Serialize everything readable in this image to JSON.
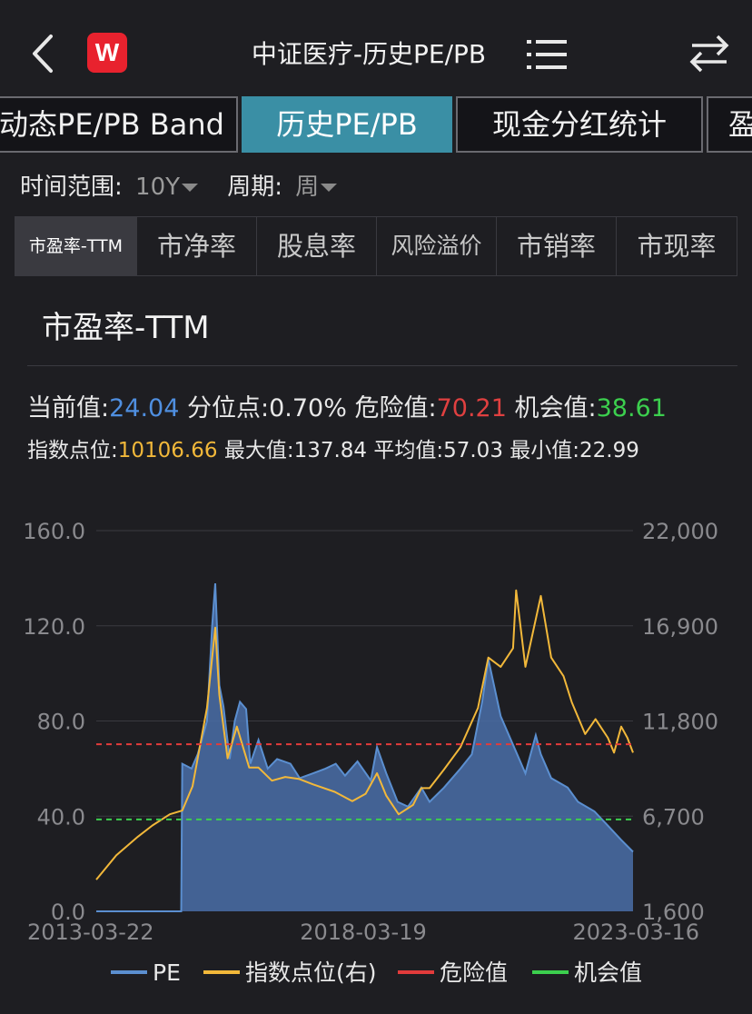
{
  "header": {
    "logo_text": "W",
    "title": "中证医疗-历史PE/PB"
  },
  "tabs": [
    {
      "label": "动态PE/PB Band"
    },
    {
      "label": "历史PE/PB"
    },
    {
      "label": "现金分红统计"
    },
    {
      "label": "盈"
    }
  ],
  "filters": {
    "range_label": "时间范围:",
    "range_value": "10Y",
    "period_label": "周期:",
    "period_value": "周"
  },
  "subtabs": [
    {
      "label": "市盈率-TTM"
    },
    {
      "label": "市净率"
    },
    {
      "label": "股息率"
    },
    {
      "label": "风险溢价"
    },
    {
      "label": "市销率"
    },
    {
      "label": "市现率"
    }
  ],
  "section_title": "市盈率-TTM",
  "stats": {
    "current_label": "当前值:",
    "current_value": "24.04",
    "percentile_label": "分位点:",
    "percentile_value": "0.70%",
    "danger_label": "危险值:",
    "danger_value": "70.21",
    "chance_label": "机会值:",
    "chance_value": "38.61",
    "index_label": "指数点位:",
    "index_value": "10106.66",
    "max_label": "最大值:",
    "max_value": "137.84",
    "avg_label": "平均值:",
    "avg_value": "57.03",
    "min_label": "最小值:",
    "min_value": "22.99"
  },
  "colors": {
    "accent": "#3a8fa5",
    "pe": "#5b8fd0",
    "pe_fill": "#4a6fa8",
    "index": "#f2b83a",
    "danger": "#e23b3b",
    "chance": "#3ccf4e",
    "blue_text": "#4f8fe0",
    "red_text": "#e04040",
    "green_text": "#3ccf4e",
    "orange_text": "#f2b83a"
  },
  "chart_data": {
    "type": "area",
    "x_tick_labels": [
      "2013-03-22",
      "2018-03-19",
      "2023-03-16"
    ],
    "x_range": [
      "2013-03-22",
      "2023-03-16"
    ],
    "y_left_ticks": [
      "160.0",
      "120.0",
      "80.0",
      "40.0",
      "0.0"
    ],
    "y_right_ticks": [
      "22,000",
      "16,900",
      "11,800",
      "6,700",
      "1,600"
    ],
    "ylim_left": [
      0,
      160
    ],
    "ylim_right": [
      1600,
      22000
    ],
    "danger_line": 70.21,
    "chance_line": 38.61,
    "series": [
      {
        "name": "PE",
        "axis": "left",
        "style": "area",
        "points": [
          [
            "2013-03-22",
            0
          ],
          [
            "2014-10-20",
            0
          ],
          [
            "2014-10-27",
            62
          ],
          [
            "2014-12-29",
            60
          ],
          [
            "2015-02-09",
            66
          ],
          [
            "2015-04-13",
            80
          ],
          [
            "2015-05-18",
            120
          ],
          [
            "2015-06-08",
            137.8
          ],
          [
            "2015-07-06",
            95
          ],
          [
            "2015-08-03",
            86
          ],
          [
            "2015-09-14",
            64
          ],
          [
            "2015-10-19",
            80
          ],
          [
            "2015-11-23",
            88
          ],
          [
            "2016-01-04",
            85
          ],
          [
            "2016-02-01",
            62
          ],
          [
            "2016-03-28",
            72
          ],
          [
            "2016-05-30",
            60
          ],
          [
            "2016-08-01",
            64
          ],
          [
            "2016-10-31",
            62
          ],
          [
            "2017-01-02",
            56
          ],
          [
            "2017-04-03",
            58
          ],
          [
            "2017-06-26",
            60
          ],
          [
            "2017-09-04",
            62
          ],
          [
            "2017-11-06",
            57
          ],
          [
            "2018-01-29",
            63
          ],
          [
            "2018-04-30",
            55
          ],
          [
            "2018-06-11",
            69
          ],
          [
            "2018-08-13",
            58
          ],
          [
            "2018-10-29",
            46
          ],
          [
            "2019-01-07",
            44
          ],
          [
            "2019-04-08",
            52
          ],
          [
            "2019-06-03",
            46
          ],
          [
            "2019-09-09",
            52
          ],
          [
            "2019-12-30",
            60
          ],
          [
            "2020-03-16",
            66
          ],
          [
            "2020-05-25",
            88
          ],
          [
            "2020-07-06",
            106
          ],
          [
            "2020-09-28",
            82
          ],
          [
            "2020-12-21",
            70
          ],
          [
            "2021-03-15",
            58
          ],
          [
            "2021-05-24",
            74
          ],
          [
            "2021-06-28",
            66
          ],
          [
            "2021-09-06",
            56
          ],
          [
            "2021-12-27",
            52
          ],
          [
            "2022-03-07",
            46
          ],
          [
            "2022-06-27",
            42
          ],
          [
            "2022-09-26",
            36
          ],
          [
            "2022-12-26",
            30
          ],
          [
            "2023-03-16",
            25
          ]
        ]
      },
      {
        "name": "指数点位(右)",
        "axis": "right",
        "style": "line",
        "points": [
          [
            "2013-03-22",
            3300
          ],
          [
            "2013-08-05",
            4600
          ],
          [
            "2013-12-30",
            5600
          ],
          [
            "2014-04-07",
            6200
          ],
          [
            "2014-08-04",
            6800
          ],
          [
            "2014-10-27",
            7000
          ],
          [
            "2015-01-05",
            8300
          ],
          [
            "2015-04-13",
            12500
          ],
          [
            "2015-06-08",
            16800
          ],
          [
            "2015-07-06",
            13200
          ],
          [
            "2015-08-31",
            9800
          ],
          [
            "2015-11-02",
            11500
          ],
          [
            "2016-01-25",
            9300
          ],
          [
            "2016-03-28",
            9300
          ],
          [
            "2016-06-27",
            8600
          ],
          [
            "2016-09-26",
            8800
          ],
          [
            "2016-12-26",
            8700
          ],
          [
            "2017-04-03",
            8400
          ],
          [
            "2017-08-28",
            8000
          ],
          [
            "2017-12-25",
            7500
          ],
          [
            "2018-03-26",
            7900
          ],
          [
            "2018-06-11",
            9000
          ],
          [
            "2018-08-13",
            7800
          ],
          [
            "2018-11-05",
            6800
          ],
          [
            "2019-02-11",
            7300
          ],
          [
            "2019-04-08",
            8200
          ],
          [
            "2019-06-03",
            8200
          ],
          [
            "2019-09-09",
            9200
          ],
          [
            "2019-12-30",
            10400
          ],
          [
            "2020-04-27",
            12500
          ],
          [
            "2020-07-06",
            15200
          ],
          [
            "2020-09-28",
            14700
          ],
          [
            "2020-12-21",
            15700
          ],
          [
            "2021-01-11",
            18800
          ],
          [
            "2021-03-15",
            14700
          ],
          [
            "2021-06-28",
            18500
          ],
          [
            "2021-09-06",
            15200
          ],
          [
            "2021-11-29",
            14200
          ],
          [
            "2022-01-24",
            12800
          ],
          [
            "2022-04-25",
            11100
          ],
          [
            "2022-07-04",
            11900
          ],
          [
            "2022-09-26",
            10900
          ],
          [
            "2022-11-07",
            10100
          ],
          [
            "2022-12-26",
            11500
          ],
          [
            "2023-02-06",
            10900
          ],
          [
            "2023-03-16",
            10100
          ]
        ]
      },
      {
        "name": "危险值",
        "axis": "left",
        "style": "dashed",
        "value": 70.21
      },
      {
        "name": "机会值",
        "axis": "left",
        "style": "dashed",
        "value": 38.61
      }
    ],
    "legend_position": "bottom",
    "grid": true
  }
}
